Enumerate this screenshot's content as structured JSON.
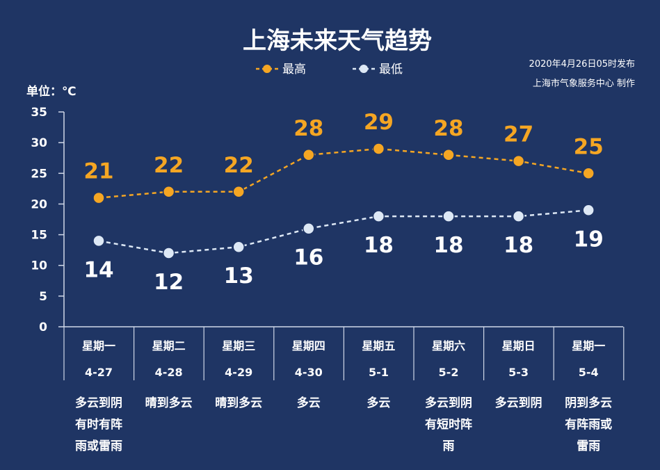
{
  "chart_data": {
    "type": "line",
    "title": "上海未来天气趋势",
    "unit_label": "单位：℃",
    "publish_note": "2020年4月26日05时发布",
    "producer_note": "上海市气象服务中心  制作",
    "ylim": [
      0,
      35
    ],
    "yticks": [
      0,
      5,
      10,
      15,
      20,
      25,
      30,
      35
    ],
    "legend": {
      "high": "最高",
      "low": "最低"
    },
    "colors": {
      "high": "#f5a623",
      "low": "#dde8f5",
      "axis": "#d0d8e8"
    },
    "categories": [
      {
        "day": "星期一",
        "date": "4-27",
        "cond": [
          "多云到阴",
          "有时有阵",
          "雨或雷雨"
        ]
      },
      {
        "day": "星期二",
        "date": "4-28",
        "cond": [
          "晴到多云"
        ]
      },
      {
        "day": "星期三",
        "date": "4-29",
        "cond": [
          "晴到多云"
        ]
      },
      {
        "day": "星期四",
        "date": "4-30",
        "cond": [
          "多云"
        ]
      },
      {
        "day": "星期五",
        "date": "5-1",
        "cond": [
          "多云"
        ]
      },
      {
        "day": "星期六",
        "date": "5-2",
        "cond": [
          "多云到阴",
          "有短时阵",
          "雨"
        ]
      },
      {
        "day": "星期日",
        "date": "5-3",
        "cond": [
          "多云到阴"
        ]
      },
      {
        "day": "星期一",
        "date": "5-4",
        "cond": [
          "阴到多云",
          "有阵雨或",
          "雷雨"
        ]
      }
    ],
    "series": [
      {
        "name": "最高",
        "key": "high",
        "values": [
          21,
          22,
          22,
          28,
          29,
          28,
          27,
          25
        ]
      },
      {
        "name": "最低",
        "key": "low",
        "values": [
          14,
          12,
          13,
          16,
          18,
          18,
          18,
          19
        ]
      }
    ]
  }
}
